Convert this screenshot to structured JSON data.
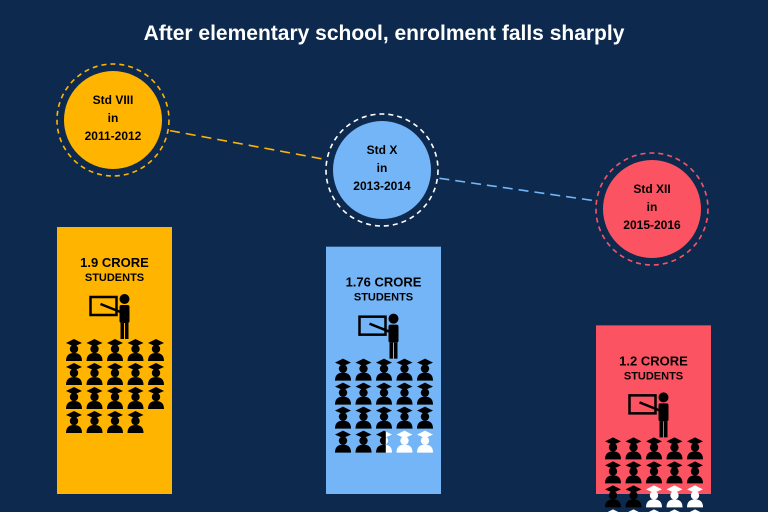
{
  "title": "After elementary school, enrolment falls sharply",
  "chart_data": {
    "type": "bar",
    "title": "After elementary school, enrolment falls sharply",
    "categories": [
      "Std VIII in 2011-2012",
      "Std X in 2013-2014",
      "Std XII in 2015-2016"
    ],
    "stages": [
      {
        "lines": [
          "Std VIII",
          "in",
          "2011-2012"
        ],
        "value_crore": 1.9,
        "label_top": "1.9 CRORE",
        "label_bottom": "STUDENTS",
        "color": "#ffb400",
        "ring_color": "#ffb400",
        "filled_icons": 19,
        "empty_icons": 0
      },
      {
        "lines": [
          "Std X",
          "in",
          "2013-2014"
        ],
        "value_crore": 1.76,
        "label_top": "1.76 CRORE",
        "label_bottom": "STUDENTS",
        "color": "#74b5f7",
        "ring_color": "#ffffff",
        "filled_icons": 17.6,
        "empty_icons": 2.4
      },
      {
        "lines": [
          "Std XII",
          "in",
          "2015-2016"
        ],
        "value_crore": 1.2,
        "label_top": "1.2 CRORE",
        "label_bottom": "STUDENTS",
        "color": "#fb5361",
        "ring_color": "#fb5361",
        "filled_icons": 12,
        "empty_icons": 8
      }
    ]
  }
}
